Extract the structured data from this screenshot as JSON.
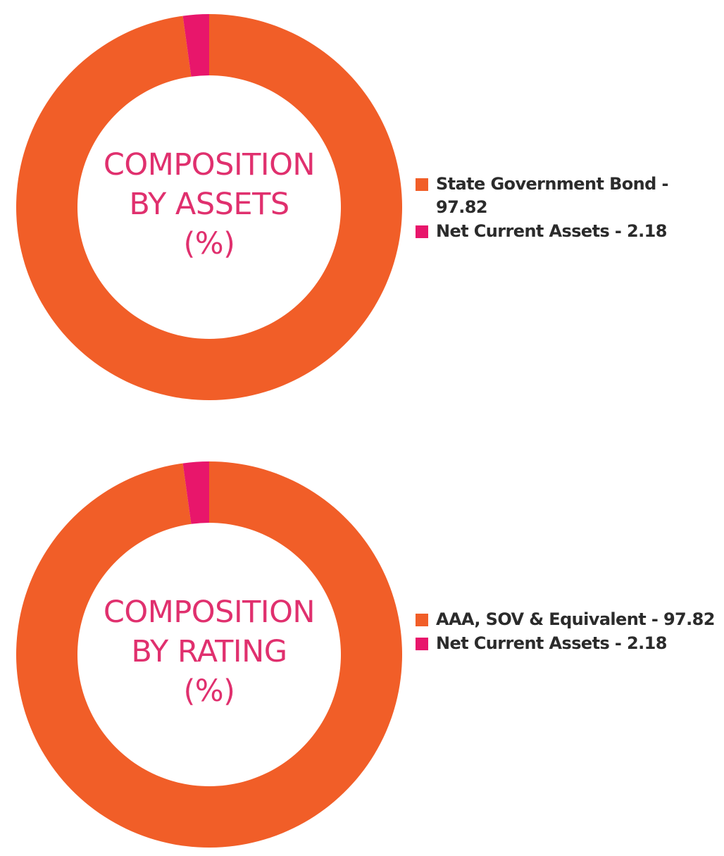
{
  "colors": {
    "primary": "#f15e28",
    "secondary": "#e8166b",
    "title": "#e0306e",
    "legend_text": "#2b2b2b"
  },
  "chart_data": [
    {
      "type": "pie",
      "variant": "donut",
      "center_title": [
        "COMPOSITION",
        "BY ASSETS",
        "(%)"
      ],
      "series": [
        {
          "name": "State Government Bond",
          "value": 97.82,
          "color": "#f15e28",
          "label": "State Government Bond - 97.82"
        },
        {
          "name": "Net Current Assets",
          "value": 2.18,
          "color": "#e8166b",
          "label": "Net Current Assets - 2.18"
        }
      ],
      "legend_placement": "right"
    },
    {
      "type": "pie",
      "variant": "donut",
      "center_title": [
        "COMPOSITION",
        "BY RATING",
        "(%)"
      ],
      "series": [
        {
          "name": "AAA, SOV & Equivalent",
          "value": 97.82,
          "color": "#f15e28",
          "label": "AAA, SOV & Equivalent - 97.82"
        },
        {
          "name": "Net Current Assets",
          "value": 2.18,
          "color": "#e8166b",
          "label": "Net Current Assets - 2.18"
        }
      ],
      "legend_placement": "right"
    }
  ]
}
